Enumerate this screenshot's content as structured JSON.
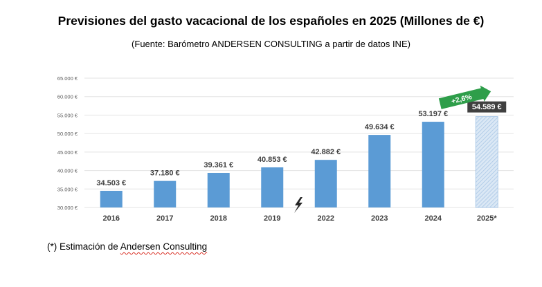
{
  "title": "Previsiones del gasto vacacional de los españoles en 2025 (Millones de €)",
  "subtitle": "(Fuente: Barómetro ANDERSEN CONSULTING a partir de datos INE)",
  "footnote": {
    "prefix": "(*) Estimación de ",
    "underlined": "Andersen Consulting"
  },
  "chart_data": {
    "type": "bar",
    "categories": [
      "2016",
      "2017",
      "2018",
      "2019",
      "2022",
      "2023",
      "2024",
      "2025*"
    ],
    "values": [
      34503,
      37180,
      39361,
      40853,
      42882,
      49634,
      53197,
      54589
    ],
    "value_labels": [
      "34.503 €",
      "37.180 €",
      "39.361 €",
      "40.853 €",
      "42.882 €",
      "49.634 €",
      "53.197 €",
      "54.589 €"
    ],
    "ylim": [
      30000,
      65000
    ],
    "yticks": [
      30000,
      35000,
      40000,
      45000,
      50000,
      55000,
      60000,
      65000
    ],
    "ytick_labels": [
      "30.000 €",
      "35.000 €",
      "40.000 €",
      "45.000 €",
      "50.000 €",
      "55.000 €",
      "60.000 €",
      "65.000 €"
    ],
    "grid": true,
    "xlabel": "",
    "ylabel": "",
    "estimate_category": "2025*",
    "growth_annotation": "+2,6%",
    "break_marker_between": [
      "2019",
      "2022"
    ],
    "colors": {
      "bar": "#5b9bd5",
      "estimate_bar": "#cfe0f1",
      "estimate_label_bg": "#404040",
      "growth_arrow": "#2e9e4a",
      "grid": "#e3e3e3",
      "text": "#404040"
    }
  }
}
